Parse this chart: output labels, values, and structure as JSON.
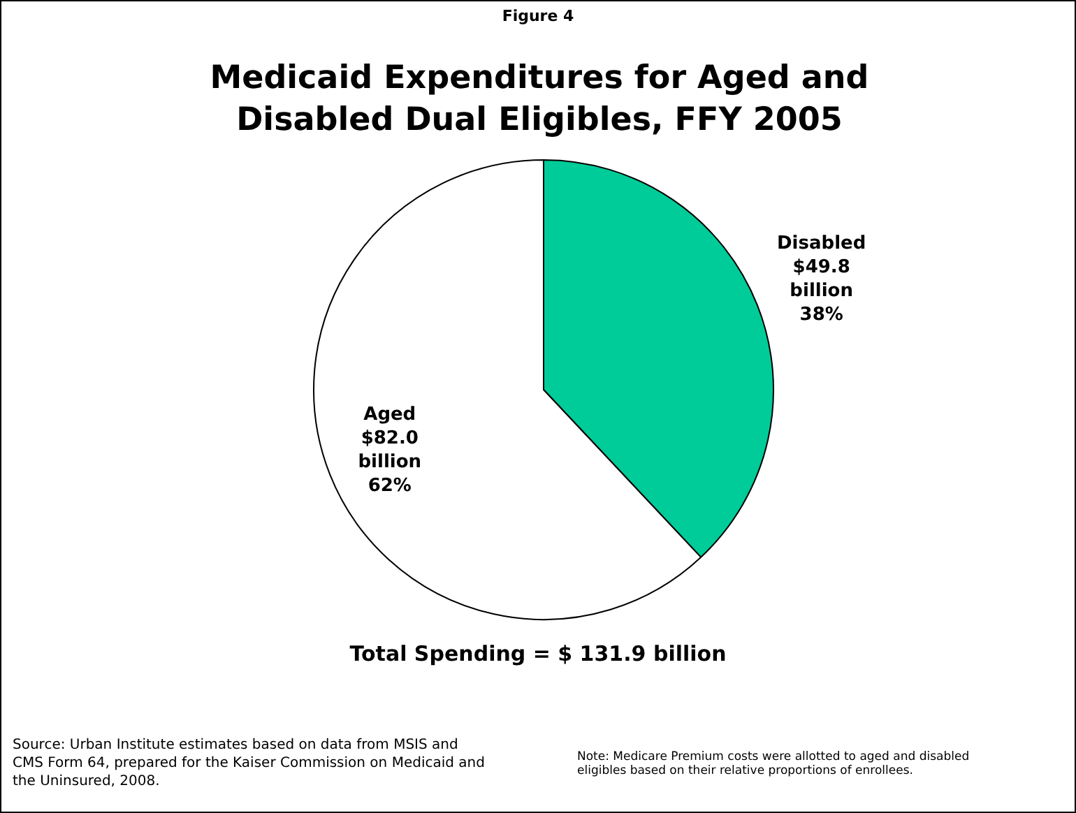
{
  "chart_data": {
    "type": "pie",
    "title": "Medicaid Expenditures for Aged and Disabled Dual Eligibles, FFY 2005",
    "categories": [
      "Disabled",
      "Aged"
    ],
    "values": [
      38,
      62
    ],
    "colors": [
      "#00cc99",
      "#ffffff"
    ],
    "value_labels": [
      "$49.8 billion 38%",
      "$82.0 billion 62%"
    ],
    "annotations": [
      "Figure 4",
      "Total Spending = $ 131.9 billion",
      "Source: Urban Institute estimates based on data from MSIS and CMS Form 64, prepared for the Kaiser Commission on Medicaid and the Uninsured, 2008.",
      "Note: Medicare Premium costs were allotted to aged and disabled eligibles based on their relative proportions of enrollees."
    ],
    "legend": false
  }
}
